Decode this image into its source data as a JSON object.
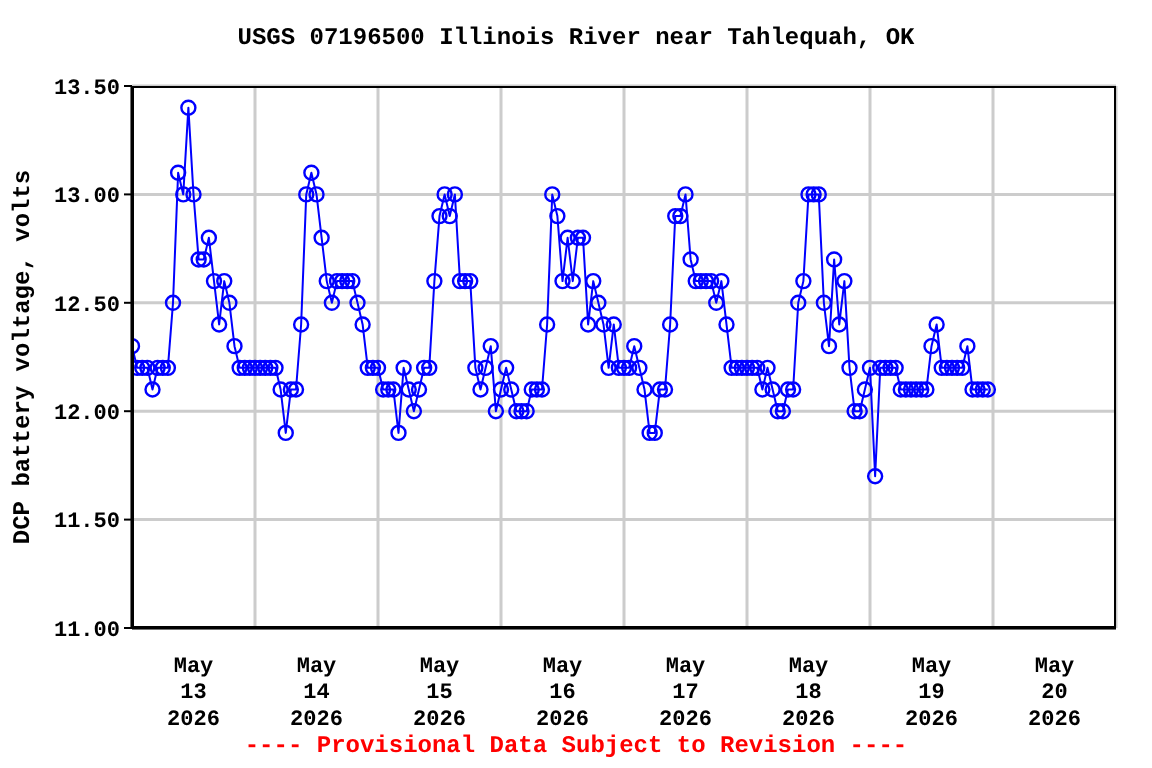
{
  "chart_data": {
    "type": "line",
    "title": "USGS 07196500 Illinois River near Tahlequah, OK",
    "ylabel": "DCP battery voltage, volts",
    "annotations": [
      "---- Provisional Data Subject to Revision ----"
    ],
    "x": [
      "2026-05-13T00:00",
      "2026-05-13T01:00",
      "2026-05-13T02:00",
      "2026-05-13T03:00",
      "2026-05-13T04:00",
      "2026-05-13T05:00",
      "2026-05-13T06:00",
      "2026-05-13T07:00",
      "2026-05-13T08:00",
      "2026-05-13T09:00",
      "2026-05-13T10:00",
      "2026-05-13T11:00",
      "2026-05-13T12:00",
      "2026-05-13T13:00",
      "2026-05-13T14:00",
      "2026-05-13T15:00",
      "2026-05-13T16:00",
      "2026-05-13T17:00",
      "2026-05-13T18:00",
      "2026-05-13T19:00",
      "2026-05-13T20:00",
      "2026-05-13T21:00",
      "2026-05-13T22:00",
      "2026-05-13T23:00",
      "2026-05-14T00:00",
      "2026-05-14T01:00",
      "2026-05-14T02:00",
      "2026-05-14T03:00",
      "2026-05-14T04:00",
      "2026-05-14T05:00",
      "2026-05-14T06:00",
      "2026-05-14T07:00",
      "2026-05-14T08:00",
      "2026-05-14T09:00",
      "2026-05-14T10:00",
      "2026-05-14T11:00",
      "2026-05-14T12:00",
      "2026-05-14T13:00",
      "2026-05-14T14:00",
      "2026-05-14T15:00",
      "2026-05-14T16:00",
      "2026-05-14T17:00",
      "2026-05-14T18:00",
      "2026-05-14T19:00",
      "2026-05-14T20:00",
      "2026-05-14T21:00",
      "2026-05-14T22:00",
      "2026-05-14T23:00",
      "2026-05-15T00:00",
      "2026-05-15T01:00",
      "2026-05-15T02:00",
      "2026-05-15T03:00",
      "2026-05-15T04:00",
      "2026-05-15T05:00",
      "2026-05-15T06:00",
      "2026-05-15T07:00",
      "2026-05-15T08:00",
      "2026-05-15T09:00",
      "2026-05-15T10:00",
      "2026-05-15T11:00",
      "2026-05-15T12:00",
      "2026-05-15T13:00",
      "2026-05-15T14:00",
      "2026-05-15T15:00",
      "2026-05-15T16:00",
      "2026-05-15T17:00",
      "2026-05-15T18:00",
      "2026-05-15T19:00",
      "2026-05-15T20:00",
      "2026-05-15T21:00",
      "2026-05-15T22:00",
      "2026-05-15T23:00",
      "2026-05-16T00:00",
      "2026-05-16T01:00",
      "2026-05-16T02:00",
      "2026-05-16T03:00",
      "2026-05-16T04:00",
      "2026-05-16T05:00",
      "2026-05-16T06:00",
      "2026-05-16T07:00",
      "2026-05-16T08:00",
      "2026-05-16T09:00",
      "2026-05-16T10:00",
      "2026-05-16T11:00",
      "2026-05-16T12:00",
      "2026-05-16T13:00",
      "2026-05-16T14:00",
      "2026-05-16T15:00",
      "2026-05-16T16:00",
      "2026-05-16T17:00",
      "2026-05-16T18:00",
      "2026-05-16T19:00",
      "2026-05-16T20:00",
      "2026-05-16T21:00",
      "2026-05-16T22:00",
      "2026-05-16T23:00",
      "2026-05-17T00:00",
      "2026-05-17T01:00",
      "2026-05-17T02:00",
      "2026-05-17T03:00",
      "2026-05-17T04:00",
      "2026-05-17T05:00",
      "2026-05-17T06:00",
      "2026-05-17T07:00",
      "2026-05-17T08:00",
      "2026-05-17T09:00",
      "2026-05-17T10:00",
      "2026-05-17T11:00",
      "2026-05-17T12:00",
      "2026-05-17T13:00",
      "2026-05-17T14:00",
      "2026-05-17T15:00",
      "2026-05-17T16:00",
      "2026-05-17T17:00",
      "2026-05-17T18:00",
      "2026-05-17T19:00",
      "2026-05-17T20:00",
      "2026-05-17T21:00",
      "2026-05-17T22:00",
      "2026-05-17T23:00",
      "2026-05-18T00:00",
      "2026-05-18T01:00",
      "2026-05-18T02:00",
      "2026-05-18T03:00",
      "2026-05-18T04:00",
      "2026-05-18T05:00",
      "2026-05-18T06:00",
      "2026-05-18T07:00",
      "2026-05-18T08:00",
      "2026-05-18T09:00",
      "2026-05-18T10:00",
      "2026-05-18T11:00",
      "2026-05-18T12:00",
      "2026-05-18T13:00",
      "2026-05-18T14:00",
      "2026-05-18T15:00",
      "2026-05-18T16:00",
      "2026-05-18T17:00",
      "2026-05-18T18:00",
      "2026-05-18T19:00",
      "2026-05-18T20:00",
      "2026-05-18T21:00",
      "2026-05-18T22:00",
      "2026-05-18T23:00",
      "2026-05-19T00:00",
      "2026-05-19T01:00",
      "2026-05-19T02:00",
      "2026-05-19T03:00",
      "2026-05-19T04:00",
      "2026-05-19T05:00",
      "2026-05-19T06:00",
      "2026-05-19T07:00",
      "2026-05-19T08:00",
      "2026-05-19T09:00",
      "2026-05-19T10:00",
      "2026-05-19T11:00",
      "2026-05-19T12:00",
      "2026-05-19T13:00",
      "2026-05-19T14:00",
      "2026-05-19T15:00",
      "2026-05-19T16:00",
      "2026-05-19T17:00",
      "2026-05-19T18:00",
      "2026-05-19T19:00",
      "2026-05-19T20:00",
      "2026-05-19T21:00",
      "2026-05-19T22:00",
      "2026-05-19T23:00"
    ],
    "series": [
      {
        "color": "#0000ff",
        "values": [
          12.3,
          12.2,
          12.2,
          12.2,
          12.1,
          12.2,
          12.2,
          12.2,
          12.5,
          13.1,
          13.0,
          13.4,
          13.0,
          12.7,
          12.7,
          12.8,
          12.6,
          12.4,
          12.6,
          12.5,
          12.3,
          12.2,
          12.2,
          12.2,
          12.2,
          12.2,
          12.2,
          12.2,
          12.2,
          12.1,
          11.9,
          12.1,
          12.1,
          12.4,
          13.0,
          13.1,
          13.0,
          12.8,
          12.6,
          12.5,
          12.6,
          12.6,
          12.6,
          12.6,
          12.5,
          12.4,
          12.2,
          12.2,
          12.2,
          12.1,
          12.1,
          12.1,
          11.9,
          12.2,
          12.1,
          12.0,
          12.1,
          12.2,
          12.2,
          12.6,
          12.9,
          13.0,
          12.9,
          13.0,
          12.6,
          12.6,
          12.6,
          12.2,
          12.1,
          12.2,
          12.3,
          12.0,
          12.1,
          12.2,
          12.1,
          12.0,
          12.0,
          12.0,
          12.1,
          12.1,
          12.1,
          12.4,
          13.0,
          12.9,
          12.6,
          12.8,
          12.6,
          12.8,
          12.8,
          12.4,
          12.6,
          12.5,
          12.4,
          12.2,
          12.4,
          12.2,
          12.2,
          12.2,
          12.3,
          12.2,
          12.1,
          11.9,
          11.9,
          12.1,
          12.1,
          12.4,
          12.9,
          12.9,
          13.0,
          12.7,
          12.6,
          12.6,
          12.6,
          12.6,
          12.5,
          12.6,
          12.4,
          12.2,
          12.2,
          12.2,
          12.2,
          12.2,
          12.2,
          12.1,
          12.2,
          12.1,
          12.0,
          12.0,
          12.1,
          12.1,
          12.5,
          12.6,
          13.0,
          13.0,
          13.0,
          12.5,
          12.3,
          12.7,
          12.4,
          12.6,
          12.2,
          12.0,
          12.0,
          12.1,
          12.2,
          11.7,
          12.2,
          12.2,
          12.2,
          12.2,
          12.1,
          12.1,
          12.1,
          12.1,
          12.1,
          12.1,
          12.3,
          12.4,
          12.2,
          12.2,
          12.2,
          12.2,
          12.2,
          12.3,
          12.1,
          12.1,
          12.1,
          12.1
        ]
      }
    ],
    "xlim": [
      "2026-05-13T00:00",
      "2026-05-21T00:00"
    ],
    "xticks": [
      {
        "value": "2026-05-13T00:00",
        "label": null
      },
      {
        "value": "2026-05-13T12:00",
        "label": "May\n13\n2026"
      },
      {
        "value": "2026-05-14T00:00",
        "label": null
      },
      {
        "value": "2026-05-14T12:00",
        "label": "May\n14\n2026"
      },
      {
        "value": "2026-05-15T00:00",
        "label": null
      },
      {
        "value": "2026-05-15T12:00",
        "label": "May\n15\n2026"
      },
      {
        "value": "2026-05-16T00:00",
        "label": null
      },
      {
        "value": "2026-05-16T12:00",
        "label": "May\n16\n2026"
      },
      {
        "value": "2026-05-17T00:00",
        "label": null
      },
      {
        "value": "2026-05-17T12:00",
        "label": "May\n17\n2026"
      },
      {
        "value": "2026-05-18T00:00",
        "label": null
      },
      {
        "value": "2026-05-18T12:00",
        "label": "May\n18\n2026"
      },
      {
        "value": "2026-05-19T00:00",
        "label": null
      },
      {
        "value": "2026-05-19T12:00",
        "label": "May\n19\n2026"
      },
      {
        "value": "2026-05-20T00:00",
        "label": null
      },
      {
        "value": "2026-05-20T12:00",
        "label": "May\n20\n2026"
      },
      {
        "value": "2026-05-21T00:00",
        "label": null
      }
    ],
    "ylim": [
      11.0,
      13.5
    ],
    "yticks": [
      {
        "value": 11.0,
        "label": "11.00"
      },
      {
        "value": 11.5,
        "label": "11.50"
      },
      {
        "value": 12.0,
        "label": "12.00"
      },
      {
        "value": 12.5,
        "label": "12.50"
      },
      {
        "value": 13.0,
        "label": "13.00"
      },
      {
        "value": 13.5,
        "label": "13.50"
      }
    ],
    "grid": true,
    "marker": "circle",
    "line_style": "solid"
  }
}
